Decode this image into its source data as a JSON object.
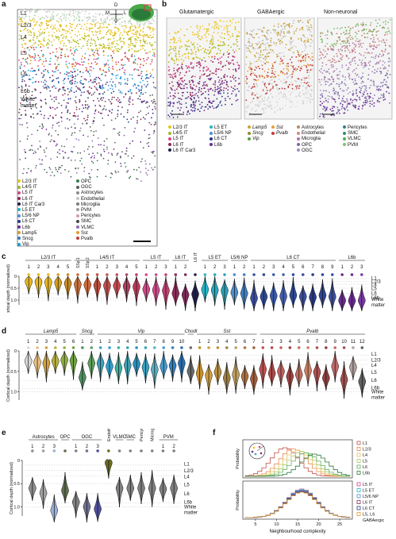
{
  "panels": {
    "a": {
      "label": "a",
      "layers": [
        "L1",
        "L2/3",
        "L4",
        "L5",
        "L6",
        "L6b",
        "White matter"
      ],
      "compass": {
        "d": "D",
        "v": "V",
        "m": "M",
        "l": "L"
      },
      "legend_left": [
        {
          "text": "L2/3 IT",
          "color": "#e8c220"
        },
        {
          "text": "L4/5 IT",
          "color": "#9fb82a"
        },
        {
          "text": "L5 IT",
          "color": "#d9458a"
        },
        {
          "text": "L6 IT",
          "color": "#8e2a5a"
        },
        {
          "text": "L6 IT Car3",
          "color": "#1f1e4a"
        },
        {
          "text": "L5 ET",
          "color": "#25b5c8"
        },
        {
          "text": "L5/6 NP",
          "color": "#4e8ed0"
        },
        {
          "text": "L6 CT",
          "color": "#233a8a"
        },
        {
          "text": "L6b",
          "color": "#6a2a93"
        },
        {
          "text": "Lamp5",
          "color": "#d89a3a"
        },
        {
          "text": "Sncg",
          "color": "#3b78c0"
        },
        {
          "text": "Vip",
          "color": "#1aa1d4"
        }
      ],
      "legend_right": [
        {
          "text": "OPC",
          "color": "#3d7a4e"
        },
        {
          "text": "OGC",
          "color": "#5c5c5c"
        },
        {
          "text": "Astrocytes",
          "color": "#8a8a8a"
        },
        {
          "text": "Endothelial",
          "color": "#c5c5c5"
        },
        {
          "text": "Microglia",
          "color": "#7a7a7a"
        },
        {
          "text": "PVM",
          "color": "#9e9e9e"
        },
        {
          "text": "Pericytes",
          "color": "#cfa1a1"
        },
        {
          "text": "SMC",
          "color": "#444444"
        },
        {
          "text": "VLMC",
          "color": "#8e6cb1"
        },
        {
          "text": "Sst",
          "color": "#e49b2f"
        },
        {
          "text": "Pvalb",
          "color": "#c13a3a"
        }
      ]
    },
    "b": {
      "label": "b",
      "titles": [
        "Glutamatergic",
        "GABAergic",
        "Non-neuronal"
      ],
      "legend_col1": [
        {
          "text": "L2/3 IT",
          "color": "#e8c220"
        },
        {
          "text": "L4/5 IT",
          "color": "#9fb82a"
        },
        {
          "text": "L5 IT",
          "color": "#d9458a"
        },
        {
          "text": "L6 IT",
          "color": "#8e2a5a"
        },
        {
          "text": "L6 IT Car3",
          "color": "#1f1e4a"
        }
      ],
      "legend_col2": [
        {
          "text": "L5 ET",
          "color": "#25b5c8"
        },
        {
          "text": "L5/6 NP",
          "color": "#4e8ed0"
        },
        {
          "text": "L6 CT",
          "color": "#233a8a"
        },
        {
          "text": "L6b",
          "color": "#6a2a93"
        }
      ],
      "legend_col3": [
        {
          "text": "Lamp5",
          "color": "#c9a236"
        },
        {
          "text": "Sncg",
          "color": "#8f8f2a"
        },
        {
          "text": "Vip",
          "color": "#5aa040"
        }
      ],
      "legend_col4": [
        {
          "text": "Sst",
          "color": "#e4a33a"
        },
        {
          "text": "Pvalb",
          "color": "#c13a3a"
        }
      ],
      "legend_col5": [
        {
          "text": "Astrocytes",
          "color": "#b38b6d"
        },
        {
          "text": "Endothelial",
          "color": "#d28b7c"
        },
        {
          "text": "Microglia",
          "color": "#b07aa0"
        },
        {
          "text": "OPC",
          "color": "#7a6aa8"
        },
        {
          "text": "OGC",
          "color": "#a390c0"
        }
      ],
      "legend_col6": [
        {
          "text": "Pericytes",
          "color": "#3d7a8e"
        },
        {
          "text": "SMC",
          "color": "#2f8e6a"
        },
        {
          "text": "VLMC",
          "color": "#4fae4f"
        },
        {
          "text": "PVM",
          "color": "#7cc66a"
        }
      ]
    },
    "c": {
      "label": "c"
    },
    "d": {
      "label": "d"
    },
    "e": {
      "label": "e"
    },
    "f": {
      "label": "f"
    }
  },
  "chart_data": [
    {
      "id": "c",
      "type": "violin",
      "ylabel": "Cortical depth (normalized)",
      "yticks": [
        "0",
        "0.5",
        "1.0"
      ],
      "ylim": [
        0,
        1.2
      ],
      "layer_labels": [
        "L1",
        "L2/3",
        "L4",
        "L5",
        "L6",
        "L6b",
        "White matter"
      ],
      "groups": [
        {
          "name": "L2/3 IT",
          "sub": [
            "1",
            "2",
            "3",
            "4",
            "5"
          ]
        },
        {
          "name": "L4/5 IT",
          "sub": [
            "SSp 1",
            "SSp 2",
            "1",
            "2",
            "3",
            "4",
            "5"
          ]
        },
        {
          "name": "L5 IT",
          "sub": [
            "1",
            "2",
            "3"
          ]
        },
        {
          "name": "L6 IT",
          "sub": [
            "1",
            "2"
          ]
        },
        {
          "name": "L6 IT Car3",
          "sub": [
            ""
          ]
        },
        {
          "name": "L5 ET",
          "sub": [
            "1",
            "2",
            "3"
          ]
        },
        {
          "name": "L5/6 NP",
          "sub": [
            "1",
            "2"
          ]
        },
        {
          "name": "L6 CT",
          "sub": [
            "1",
            "2",
            "3",
            "4",
            "5",
            "6",
            "7",
            "8",
            "9"
          ]
        },
        {
          "name": "L6b",
          "sub": [
            "1",
            "2",
            "3"
          ]
        }
      ],
      "series": [
        {
          "color": "#e8b820",
          "median": 0.22
        },
        {
          "color": "#e8b820",
          "median": 0.24
        },
        {
          "color": "#e8b820",
          "median": 0.25
        },
        {
          "color": "#d4a020",
          "median": 0.27
        },
        {
          "color": "#c88a20",
          "median": 0.3
        },
        {
          "color": "#c8703a",
          "median": 0.34
        },
        {
          "color": "#d06a3a",
          "median": 0.36
        },
        {
          "color": "#b85040",
          "median": 0.38
        },
        {
          "color": "#c0504a",
          "median": 0.39
        },
        {
          "color": "#c84a50",
          "median": 0.4
        },
        {
          "color": "#b04060",
          "median": 0.42
        },
        {
          "color": "#c03a5a",
          "median": 0.44
        },
        {
          "color": "#d9458a",
          "median": 0.55
        },
        {
          "color": "#cc4a8a",
          "median": 0.58
        },
        {
          "color": "#c04070",
          "median": 0.6
        },
        {
          "color": "#8e2a5a",
          "median": 0.72
        },
        {
          "color": "#7e2a5a",
          "median": 0.78
        },
        {
          "color": "#1f1e4a",
          "median": 0.75
        },
        {
          "color": "#25b5c8",
          "median": 0.56
        },
        {
          "color": "#25a8c0",
          "median": 0.58
        },
        {
          "color": "#2aa0b8",
          "median": 0.6
        },
        {
          "color": "#4e8ed0",
          "median": 0.68
        },
        {
          "color": "#3e7ec0",
          "median": 0.72
        },
        {
          "color": "#3a4ea0",
          "median": 0.92
        },
        {
          "color": "#2f4a96",
          "median": 0.86
        },
        {
          "color": "#3c5aa8",
          "median": 0.82
        },
        {
          "color": "#4660b0",
          "median": 0.84
        },
        {
          "color": "#2f4a96",
          "median": 0.8
        },
        {
          "color": "#3a4ea0",
          "median": 0.85
        },
        {
          "color": "#2a3a8a",
          "median": 0.88
        },
        {
          "color": "#30459a",
          "median": 0.8
        },
        {
          "color": "#3a4ea0",
          "median": 0.86
        },
        {
          "color": "#6a2a93",
          "median": 1.02
        },
        {
          "color": "#6a2a93",
          "median": 1.03
        },
        {
          "color": "#7a3aa3",
          "median": 1.02
        }
      ]
    },
    {
      "id": "d",
      "type": "violin",
      "ylabel": "Cortical depth (normalized)",
      "yticks": [
        "0",
        "0.5",
        "1.0"
      ],
      "ylim": [
        0,
        1.2
      ],
      "layer_labels": [
        "L1",
        "L2/3",
        "L4",
        "L5",
        "L6",
        "L6b",
        "White matter"
      ],
      "groups": [
        {
          "name": "Lamp5",
          "italic": true,
          "sub": [
            "1",
            "2",
            "3",
            "4",
            "5",
            "6"
          ]
        },
        {
          "name": "Sncg",
          "italic": true,
          "sub": [
            "1",
            "2"
          ]
        },
        {
          "name": "Vip",
          "italic": true,
          "sub": [
            "1",
            "2",
            "3",
            "4",
            "5",
            "6",
            "7",
            "8",
            "9",
            "10"
          ]
        },
        {
          "name": "Chodl",
          "italic": true,
          "sub": [
            ""
          ]
        },
        {
          "name": "Sst",
          "italic": true,
          "sub": [
            "1",
            "2",
            "3",
            "4",
            "5",
            "6",
            "7"
          ]
        },
        {
          "name": "Pvalb",
          "italic": true,
          "sub": [
            "1",
            "2",
            "3",
            "4",
            "5",
            "6",
            "7",
            "8",
            "9",
            "10",
            "11",
            "12"
          ]
        }
      ],
      "series": [
        {
          "color": "#d8d8d8",
          "median": 0.25
        },
        {
          "color": "#e6c080",
          "median": 0.28
        },
        {
          "color": "#d0a040",
          "median": 0.3
        },
        {
          "color": "#b8b040",
          "median": 0.25
        },
        {
          "color": "#90b040",
          "median": 0.22
        },
        {
          "color": "#70a040",
          "median": 0.24
        },
        {
          "color": "#4f9060",
          "median": 0.65
        },
        {
          "color": "#60a060",
          "median": 0.3
        },
        {
          "color": "#3aa0c0",
          "median": 0.3
        },
        {
          "color": "#2fa0d0",
          "median": 0.38
        },
        {
          "color": "#3ab0a0",
          "median": 0.42
        },
        {
          "color": "#40a0b0",
          "median": 0.35
        },
        {
          "color": "#2a90c0",
          "median": 0.32
        },
        {
          "color": "#3aa0c0",
          "median": 0.4
        },
        {
          "color": "#5ab0c0",
          "median": 0.45
        },
        {
          "color": "#4a9ad0",
          "median": 0.38
        },
        {
          "color": "#3080c0",
          "median": 0.36
        },
        {
          "color": "#2a70b0",
          "median": 0.3
        },
        {
          "color": "#6a6a6a",
          "median": 0.5
        },
        {
          "color": "#c8902a",
          "median": 0.55
        },
        {
          "color": "#d0a040",
          "median": 0.6
        },
        {
          "color": "#b89040",
          "median": 0.52
        },
        {
          "color": "#a08040",
          "median": 0.66
        },
        {
          "color": "#c0a060",
          "median": 0.58
        },
        {
          "color": "#b07040",
          "median": 0.62
        },
        {
          "color": "#a06040",
          "median": 0.68
        },
        {
          "color": "#c05050",
          "median": 0.45
        },
        {
          "color": "#b04a4a",
          "median": 0.55
        },
        {
          "color": "#c06060",
          "median": 0.5
        },
        {
          "color": "#a04040",
          "median": 0.62
        },
        {
          "color": "#c07060",
          "median": 0.58
        },
        {
          "color": "#d08060",
          "median": 0.48
        },
        {
          "color": "#b05050",
          "median": 0.52
        },
        {
          "color": "#904040",
          "median": 0.66
        },
        {
          "color": "#c06a6a",
          "median": 0.38
        },
        {
          "color": "#a05050",
          "median": 0.7
        },
        {
          "color": "#b0a0a0",
          "median": 0.4
        },
        {
          "color": "#606060",
          "median": 0.75
        }
      ]
    },
    {
      "id": "e",
      "type": "violin",
      "ylabel": "Cortical depth (normalized)",
      "yticks": [
        "0",
        "0.5",
        "1.0"
      ],
      "ylim": [
        0,
        1.2
      ],
      "layer_labels": [
        "L1",
        "L2/3",
        "L4",
        "L5",
        "L6",
        "L6b",
        "White matter"
      ],
      "groups": [
        {
          "name": "Astrocytes",
          "sub": [
            "1",
            "2",
            "3"
          ]
        },
        {
          "name": "OPC",
          "sub": [
            ""
          ]
        },
        {
          "name": "OGC",
          "sub": [
            "1",
            "2",
            "3"
          ]
        },
        {
          "name": "Endothelial",
          "sub": [
            ""
          ]
        },
        {
          "name": "VLMC",
          "sub": [
            ""
          ]
        },
        {
          "name": "SMC",
          "sub": [
            ""
          ]
        },
        {
          "name": "Pericytes",
          "sub": [
            ""
          ]
        },
        {
          "name": "Microglia",
          "sub": [
            ""
          ]
        },
        {
          "name": "PVM",
          "sub": [
            "1",
            "2"
          ]
        }
      ],
      "series": [
        {
          "color": "#8e8e8e",
          "median": 0.6
        },
        {
          "color": "#a0a0a0",
          "median": 0.7
        },
        {
          "color": "#9ab0d8",
          "median": 1.08
        },
        {
          "color": "#607050",
          "median": 0.65
        },
        {
          "color": "#808080",
          "median": 0.9
        },
        {
          "color": "#707090",
          "median": 1.0
        },
        {
          "color": "#5050a0",
          "median": 1.05
        },
        {
          "color": "#6a6a20",
          "median": 0.05
        },
        {
          "color": "#808080",
          "median": 0.6
        },
        {
          "color": "#808080",
          "median": 0.6
        },
        {
          "color": "#808080",
          "median": 0.6
        },
        {
          "color": "#808080",
          "median": 0.6
        },
        {
          "color": "#808080",
          "median": 0.62
        },
        {
          "color": "#808080",
          "median": 0.6
        }
      ]
    },
    {
      "id": "f",
      "type": "line",
      "xlabel": "Neighbourhood complexity",
      "ylabel": "Probability",
      "xlim": [
        2,
        28
      ],
      "xticks": [
        "5",
        "10",
        "15",
        "20",
        "25"
      ],
      "panels": [
        {
          "series": [
            {
              "name": "L1",
              "color": "#c0504a",
              "peak": 12
            },
            {
              "name": "L2/3",
              "color": "#e88a50",
              "peak": 14
            },
            {
              "name": "L4",
              "color": "#e8c060",
              "peak": 15
            },
            {
              "name": "L5",
              "color": "#a8c860",
              "peak": 16
            },
            {
              "name": "L6",
              "color": "#60b060",
              "peak": 17
            },
            {
              "name": "L6b",
              "color": "#2a7a3a",
              "peak": 19
            }
          ]
        },
        {
          "series": [
            {
              "name": "L5 IT",
              "color": "#d9458a",
              "peak": 16
            },
            {
              "name": "L5 ET",
              "color": "#25b5c8",
              "peak": 16
            },
            {
              "name": "L5/6 NP",
              "color": "#4e8ed0",
              "peak": 16
            },
            {
              "name": "L6 IT",
              "color": "#8e2a5a",
              "peak": 16
            },
            {
              "name": "L6 CT",
              "color": "#233a8a",
              "peak": 16
            },
            {
              "name": "L5, L6 GABAergic",
              "color": "#e49b2f",
              "peak": 16
            }
          ]
        }
      ],
      "legend_lines": [
        "L5 IT",
        "L5 ET",
        "L5/6 NP",
        "L6 IT",
        "L6 CT",
        "L5, L6",
        "GABAergic"
      ]
    }
  ]
}
